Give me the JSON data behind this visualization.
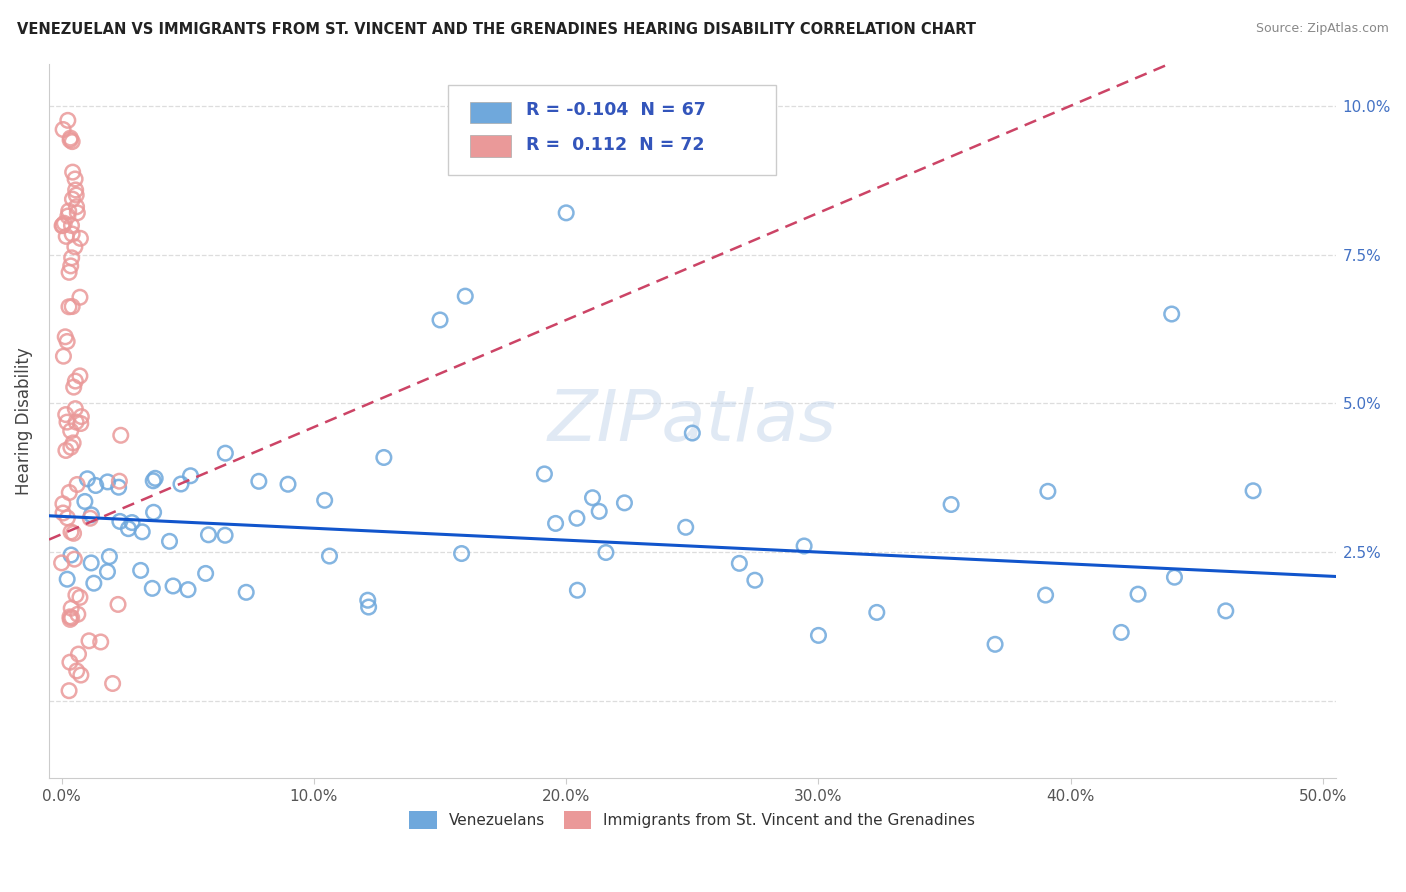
{
  "title": "VENEZUELAN VS IMMIGRANTS FROM ST. VINCENT AND THE GRENADINES HEARING DISABILITY CORRELATION CHART",
  "source": "Source: ZipAtlas.com",
  "ylabel": "Hearing Disability",
  "xlim": [
    -0.005,
    0.505
  ],
  "ylim": [
    -0.013,
    0.107
  ],
  "xtick_vals": [
    0.0,
    0.1,
    0.2,
    0.3,
    0.4,
    0.5
  ],
  "xticklabels": [
    "0.0%",
    "10.0%",
    "20.0%",
    "30.0%",
    "40.0%",
    "50.0%"
  ],
  "ytick_vals": [
    0.0,
    0.025,
    0.05,
    0.075,
    0.1
  ],
  "yticklabels_right": [
    "",
    "2.5%",
    "5.0%",
    "7.5%",
    "10.0%"
  ],
  "legend_blue_R": "-0.104",
  "legend_blue_N": "67",
  "legend_pink_R": "0.112",
  "legend_pink_N": "72",
  "legend_label_blue": "Venezuelans",
  "legend_label_pink": "Immigrants from St. Vincent and the Grenadines",
  "blue_color": "#6fa8dc",
  "pink_color": "#ea9999",
  "blue_line_color": "#1155cc",
  "pink_line_color": "#cc4466",
  "watermark_text": "ZIPatlas",
  "watermark_color": "#d0dff0",
  "blue_scatter_seed": 42,
  "pink_scatter_seed": 7,
  "blue_R": -0.104,
  "pink_R": 0.112
}
